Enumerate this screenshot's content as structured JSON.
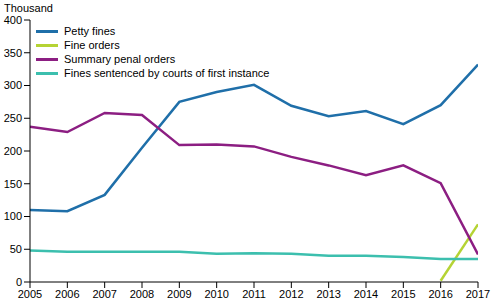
{
  "chart_data": {
    "type": "line",
    "y_label": "Thousand",
    "x": [
      2005,
      2006,
      2007,
      2008,
      2009,
      2010,
      2011,
      2012,
      2013,
      2014,
      2015,
      2016,
      2017
    ],
    "xlim": [
      2005,
      2017
    ],
    "xticks": [
      2005,
      2006,
      2007,
      2008,
      2009,
      2010,
      2011,
      2012,
      2013,
      2014,
      2015,
      2016,
      2017
    ],
    "ylim": [
      0,
      400
    ],
    "yticks": [
      0,
      50,
      100,
      150,
      200,
      250,
      300,
      350,
      400
    ],
    "grid": false,
    "legend": "top-left",
    "series": [
      {
        "name": "Petty fines",
        "color": "#1f6fa9",
        "values": [
          110,
          108,
          133,
          205,
          275,
          290,
          301,
          269,
          253,
          261,
          241,
          270,
          332
        ]
      },
      {
        "name": "Fine orders",
        "color": "#b5d334",
        "values": [
          null,
          null,
          null,
          null,
          null,
          null,
          null,
          null,
          null,
          null,
          null,
          2,
          88
        ]
      },
      {
        "name": "Summary penal orders",
        "color": "#8c1e82",
        "values": [
          237,
          229,
          258,
          255,
          209,
          210,
          207,
          191,
          178,
          163,
          178,
          151,
          42
        ]
      },
      {
        "name": "Fines sentenced by courts of first instance",
        "color": "#3cbfae",
        "values": [
          48,
          46,
          46,
          46,
          46,
          43,
          44,
          43,
          40,
          40,
          38,
          35,
          35
        ]
      }
    ]
  }
}
